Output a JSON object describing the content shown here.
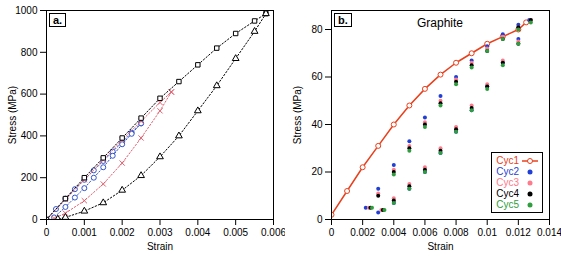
{
  "chart_data": [
    {
      "type": "line",
      "annotations": [
        "a."
      ],
      "x_label": "Strain",
      "y_label": "Stress (MPa)",
      "xlim": [
        0,
        0.006
      ],
      "xticks": [
        0,
        0.001,
        0.002,
        0.003,
        0.004,
        0.005,
        0.006
      ],
      "ylim": [
        0,
        1000
      ],
      "yticks": [
        0,
        200,
        400,
        600,
        800,
        1000
      ],
      "series": [
        {
          "color": "#3355cc",
          "marker": "circle",
          "line_style": "dotted",
          "x": [
            0,
            0.00025,
            0.0005,
            0.00075,
            0.001,
            0.00125,
            0.0015,
            0.00175,
            0.002,
            0.00225,
            0.0025
          ],
          "values": [
            0,
            50,
            100,
            145,
            190,
            235,
            280,
            325,
            370,
            415,
            460
          ]
        },
        {
          "color": "#3355cc",
          "marker": "circle",
          "line_style": "dotted",
          "x": [
            0.0025,
            0.00225,
            0.002,
            0.00175,
            0.0015,
            0.00125,
            0.001,
            0.00075,
            0.0005,
            0.0002
          ],
          "values": [
            460,
            410,
            360,
            305,
            250,
            200,
            150,
            105,
            60,
            10
          ]
        },
        {
          "color": "#e06070",
          "marker": "times",
          "line_style": "dotted",
          "x": [
            0,
            0.0005,
            0.001,
            0.0015,
            0.002,
            0.0025,
            0.003,
            0.0033
          ],
          "values": [
            0,
            95,
            190,
            285,
            380,
            470,
            560,
            610
          ]
        },
        {
          "color": "#e06070",
          "marker": "times",
          "line_style": "dotted",
          "x": [
            0.0033,
            0.003,
            0.0025,
            0.002,
            0.0015,
            0.001,
            0.0005,
            0.0002
          ],
          "values": [
            610,
            520,
            390,
            270,
            170,
            90,
            30,
            5
          ]
        },
        {
          "color": "#000000",
          "marker": "square",
          "line_style": "dotted",
          "x": [
            0,
            0.0005,
            0.001,
            0.0015,
            0.002,
            0.0025,
            0.003,
            0.0035,
            0.004,
            0.0045,
            0.005,
            0.0055,
            0.0058
          ],
          "values": [
            0,
            100,
            200,
            295,
            390,
            485,
            580,
            660,
            740,
            820,
            890,
            950,
            985
          ]
        },
        {
          "color": "#000000",
          "marker": "triangle",
          "line_style": "dotted",
          "x": [
            0.0058,
            0.0055,
            0.005,
            0.0045,
            0.004,
            0.0035,
            0.003,
            0.0025,
            0.002,
            0.0015,
            0.001,
            0.0005,
            0.0003
          ],
          "values": [
            985,
            900,
            770,
            640,
            520,
            400,
            300,
            210,
            140,
            80,
            40,
            10,
            2
          ]
        }
      ]
    },
    {
      "type": "line",
      "title": "Graphite",
      "annotations": [
        "b."
      ],
      "x_label": "Strain",
      "y_label": "Stress (MPa)",
      "xlim": [
        0,
        0.014
      ],
      "xticks": [
        0,
        0.002,
        0.004,
        0.006,
        0.008,
        0.01,
        0.012,
        0.014
      ],
      "ylim": [
        0,
        88
      ],
      "yticks": [
        0,
        20,
        40,
        60,
        80
      ],
      "legend": "lower right",
      "series": [
        {
          "name": "Cyc1",
          "color": "#e8401c",
          "marker": "circle",
          "line_style": "solid",
          "x": [
            0,
            0.001,
            0.002,
            0.003,
            0.004,
            0.005,
            0.006,
            0.007,
            0.008,
            0.009,
            0.01,
            0.011,
            0.012,
            0.0125
          ],
          "values": [
            2,
            12,
            22,
            31,
            40,
            48,
            55,
            61,
            66,
            70,
            74,
            77,
            80,
            83
          ]
        },
        {
          "name": "Cyc2",
          "color": "#1f3fd6",
          "marker": "dot",
          "line_style": "none",
          "x": [
            0.0022,
            0.003,
            0.004,
            0.005,
            0.006,
            0.007,
            0.008,
            0.009,
            0.01,
            0.011,
            0.012,
            0.0127,
            0.012,
            0.011,
            0.01,
            0.009,
            0.008,
            0.007,
            0.006,
            0.005,
            0.004,
            0.003
          ],
          "values": [
            5,
            13,
            23,
            33,
            43,
            52,
            60,
            67,
            73,
            78,
            82,
            84,
            76,
            66,
            56,
            46,
            37,
            28,
            20,
            13,
            7,
            3
          ]
        },
        {
          "name": "Cyc3",
          "color": "#ff7a8a",
          "marker": "dot",
          "line_style": "none",
          "x": [
            0.0024,
            0.003,
            0.004,
            0.005,
            0.006,
            0.007,
            0.008,
            0.009,
            0.01,
            0.011,
            0.012,
            0.0128,
            0.012,
            0.011,
            0.01,
            0.009,
            0.008,
            0.007,
            0.006,
            0.005,
            0.004,
            0.0032
          ],
          "values": [
            5,
            11,
            21,
            31,
            41,
            50,
            59,
            66,
            72,
            77,
            81,
            84,
            75,
            67,
            57,
            48,
            39,
            30,
            22,
            15,
            9,
            4
          ]
        },
        {
          "name": "Cyc4",
          "color": "#000000",
          "marker": "dot",
          "line_style": "none",
          "x": [
            0.0025,
            0.003,
            0.004,
            0.005,
            0.006,
            0.007,
            0.008,
            0.009,
            0.01,
            0.011,
            0.012,
            0.0128,
            0.012,
            0.011,
            0.01,
            0.009,
            0.008,
            0.007,
            0.006,
            0.005,
            0.004,
            0.0033
          ],
          "values": [
            5,
            10,
            20,
            30,
            40,
            49,
            58,
            65,
            71,
            76,
            81,
            84,
            74,
            66,
            56,
            47,
            38,
            29,
            21,
            14,
            8,
            4
          ]
        },
        {
          "name": "Cyc5",
          "color": "#2e9e3e",
          "marker": "dot",
          "line_style": "none",
          "x": [
            0.0026,
            0.004,
            0.005,
            0.006,
            0.007,
            0.008,
            0.009,
            0.01,
            0.011,
            0.012,
            0.0128,
            0.012,
            0.011,
            0.01,
            0.009,
            0.008,
            0.007,
            0.006,
            0.005,
            0.004,
            0.0034
          ],
          "values": [
            5,
            19,
            29,
            39,
            48,
            57,
            64,
            71,
            76,
            80,
            83,
            74,
            65,
            55,
            46,
            37,
            28,
            20,
            13,
            7,
            4
          ]
        }
      ]
    }
  ]
}
